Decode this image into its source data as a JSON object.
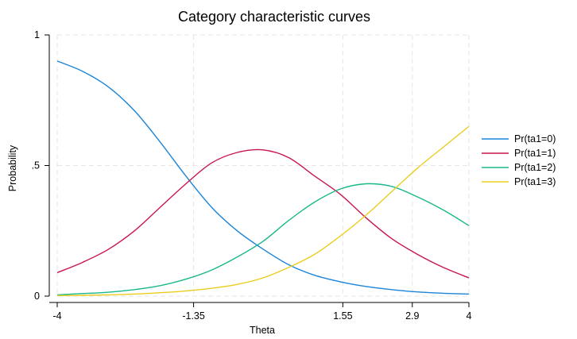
{
  "chart_data": {
    "type": "line",
    "title": "Category characteristic curves",
    "xlabel": "Theta",
    "ylabel": "Probability",
    "xlim": [
      -4,
      4
    ],
    "ylim": [
      0,
      1
    ],
    "xticks": [
      {
        "value": -4,
        "label": "-4"
      },
      {
        "value": -1.35,
        "label": "-1.35"
      },
      {
        "value": 1.55,
        "label": "1.55"
      },
      {
        "value": 2.9,
        "label": "2.9"
      },
      {
        "value": 4,
        "label": "4"
      }
    ],
    "yticks": [
      {
        "value": 0,
        "label": "0"
      },
      {
        "value": 0.5,
        "label": ".5"
      },
      {
        "value": 1,
        "label": "1"
      }
    ],
    "grid": true,
    "legend_position": "right",
    "x": [
      -4,
      -3.5,
      -3,
      -2.5,
      -2,
      -1.5,
      -1,
      -0.5,
      0,
      0.5,
      1,
      1.5,
      2,
      2.5,
      3,
      3.5,
      4
    ],
    "series": [
      {
        "name": "Pr(ta1=0)",
        "color": "#1a85d9",
        "values": [
          0.9,
          0.86,
          0.8,
          0.71,
          0.59,
          0.46,
          0.34,
          0.25,
          0.18,
          0.12,
          0.08,
          0.055,
          0.037,
          0.025,
          0.016,
          0.011,
          0.008
        ]
      },
      {
        "name": "Pr(ta1=1)",
        "color": "#c8174f",
        "values": [
          0.09,
          0.13,
          0.18,
          0.25,
          0.34,
          0.43,
          0.51,
          0.55,
          0.56,
          0.53,
          0.46,
          0.39,
          0.3,
          0.22,
          0.16,
          0.11,
          0.07
        ]
      },
      {
        "name": "Pr(ta1=2)",
        "color": "#19b88a",
        "values": [
          0.005,
          0.01,
          0.015,
          0.025,
          0.04,
          0.065,
          0.1,
          0.15,
          0.21,
          0.29,
          0.36,
          0.41,
          0.43,
          0.42,
          0.38,
          0.33,
          0.27
        ]
      },
      {
        "name": "Pr(ta1=3)",
        "color": "#eccd1e",
        "values": [
          0.002,
          0.003,
          0.005,
          0.008,
          0.013,
          0.02,
          0.03,
          0.045,
          0.07,
          0.11,
          0.16,
          0.23,
          0.31,
          0.4,
          0.49,
          0.57,
          0.65
        ]
      }
    ]
  }
}
